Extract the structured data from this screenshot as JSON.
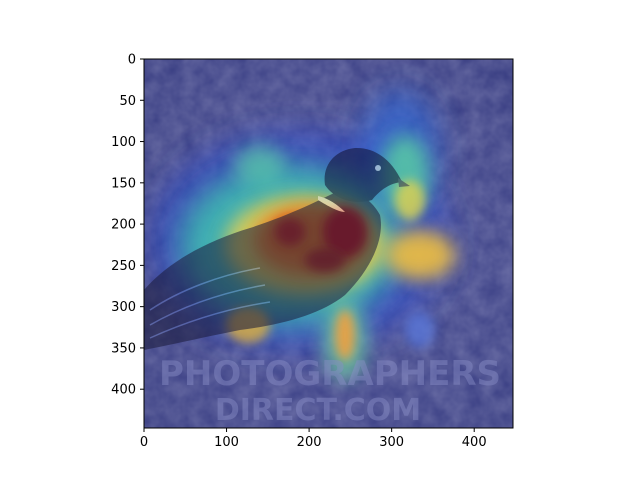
{
  "figure": {
    "image_subject": "pigeon standing on gravel ground with attention heatmap overlay",
    "colormap": "jet",
    "watermark_lines": [
      "PHOTOGRAPHERS",
      "DIRECT.COM"
    ],
    "colors": {
      "background_overlay": "#3a3f8a",
      "heat_high": "#c8141a",
      "heat_mid": "#f0c040",
      "heat_low": "#3fc8d0"
    }
  },
  "axes": {
    "xlim": [
      0,
      447
    ],
    "ylim": [
      447,
      0
    ],
    "x_ticks": [
      0,
      100,
      200,
      300,
      400
    ],
    "y_ticks": [
      0,
      50,
      100,
      150,
      200,
      250,
      300,
      350,
      400
    ],
    "grid": false
  }
}
